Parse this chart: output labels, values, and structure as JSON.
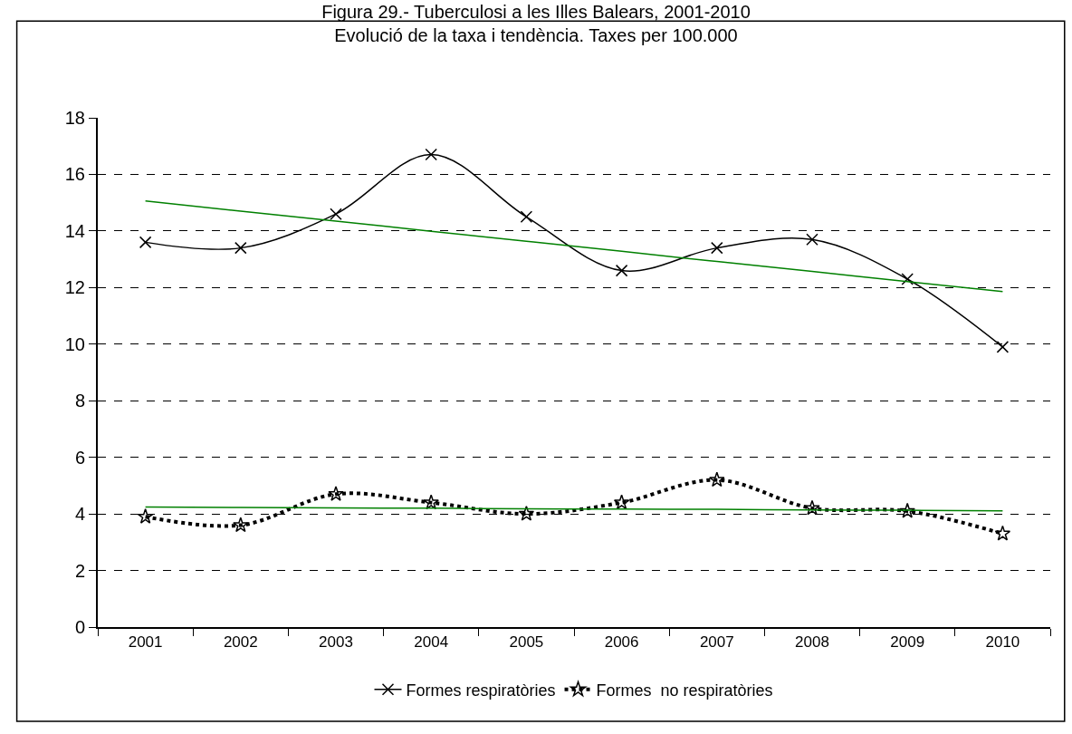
{
  "chart_data": {
    "type": "line",
    "title": "Figura 29.- Tuberculosi a les Illes Balears, 2001-2010",
    "subtitle": "Evolució de la taxa i tendència. Taxes per 100.000",
    "x": [
      2001,
      2002,
      2003,
      2004,
      2005,
      2006,
      2007,
      2008,
      2009,
      2010
    ],
    "xlim": [
      2000.5,
      2010.5
    ],
    "xticks": [
      2001,
      2002,
      2003,
      2004,
      2005,
      2006,
      2007,
      2008,
      2009,
      2010
    ],
    "ylim": [
      0,
      18
    ],
    "yticks": [
      0,
      2,
      4,
      6,
      8,
      10,
      12,
      14,
      16,
      18
    ],
    "grid": "y",
    "legend": "bottom",
    "series": [
      {
        "name": "Formes respiratòries",
        "color": "#000000",
        "marker": "cross",
        "line_style": "solid",
        "values": [
          13.6,
          13.4,
          14.6,
          16.7,
          14.5,
          12.6,
          13.4,
          13.7,
          12.3,
          9.9
        ]
      },
      {
        "name": "Formes  no respiratòries",
        "color": "#000000",
        "marker": "star",
        "line_style": "dotted",
        "values": [
          3.9,
          3.6,
          4.7,
          4.4,
          4.0,
          4.4,
          5.2,
          4.2,
          4.1,
          3.3
        ]
      },
      {
        "type": "line",
        "color": "#008000",
        "marker": "none",
        "line_style": "solid",
        "values": [
          15.06,
          14.7,
          14.35,
          13.99,
          13.64,
          13.28,
          12.92,
          12.57,
          12.21,
          11.86
        ]
      },
      {
        "type": "line",
        "color": "#008000",
        "marker": "none",
        "line_style": "solid",
        "values": [
          4.24,
          4.23,
          4.21,
          4.2,
          4.18,
          4.17,
          4.16,
          4.14,
          4.13,
          4.11
        ]
      }
    ]
  }
}
